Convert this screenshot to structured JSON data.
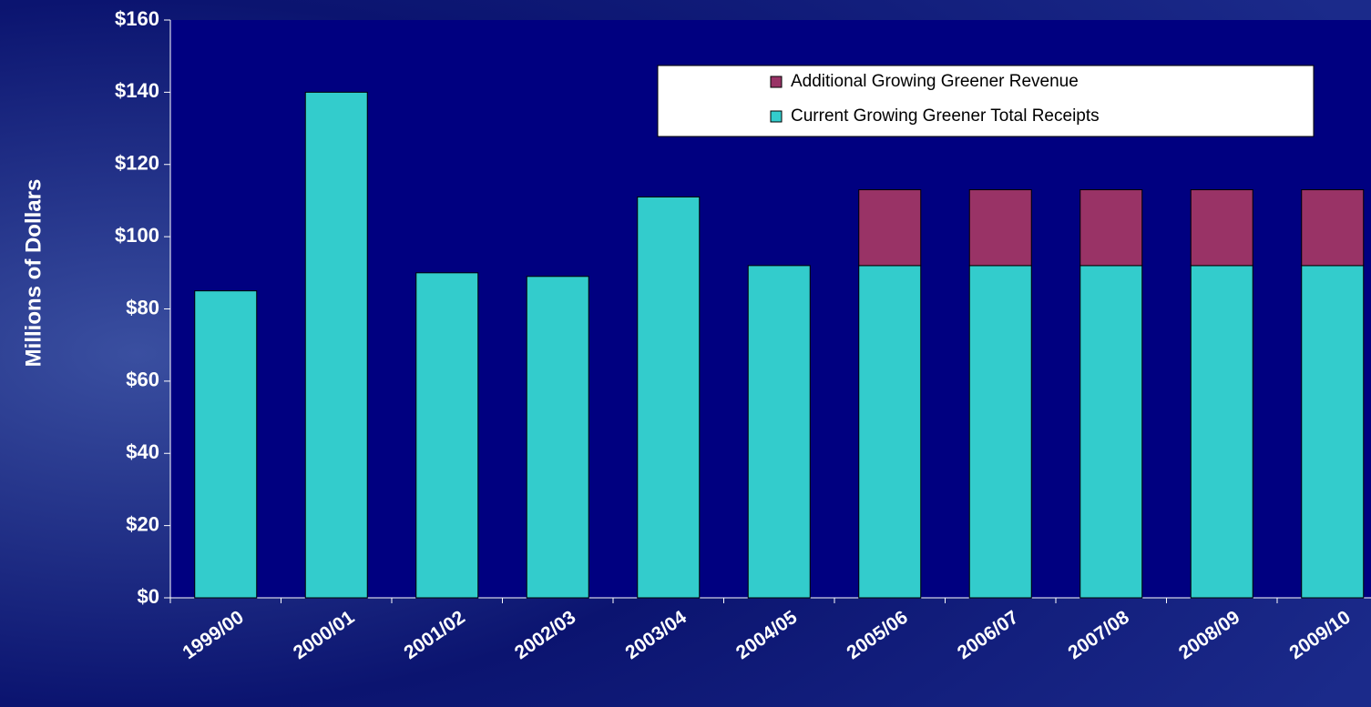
{
  "chart_data": {
    "type": "stacked_bar",
    "y_label": "Millions of Dollars",
    "categories": [
      "1999/00",
      "2000/01",
      "2001/02",
      "2002/03",
      "2003/04",
      "2004/05",
      "2005/06",
      "2006/07",
      "2007/08",
      "2008/09",
      "2009/10"
    ],
    "series": [
      {
        "name": "Current Growing Greener Total Receipts",
        "color": "#33cccc",
        "values": [
          85,
          140,
          90,
          89,
          111,
          92,
          92,
          92,
          92,
          92,
          92
        ]
      },
      {
        "name": "Additional Growing Greener Revenue",
        "color": "#993366",
        "values": [
          null,
          null,
          null,
          null,
          null,
          null,
          21,
          21,
          21,
          21,
          21
        ]
      }
    ],
    "ylim": [
      0,
      160
    ],
    "yticks": [
      {
        "value": 0,
        "label": "$0"
      },
      {
        "value": 20,
        "label": "$20"
      },
      {
        "value": 40,
        "label": "$40"
      },
      {
        "value": 60,
        "label": "$60"
      },
      {
        "value": 80,
        "label": "$80"
      },
      {
        "value": 100,
        "label": "$100"
      },
      {
        "value": 120,
        "label": "$120"
      },
      {
        "value": 140,
        "label": "$140"
      },
      {
        "value": 160,
        "label": "$160"
      }
    ],
    "legend": "upper right"
  }
}
